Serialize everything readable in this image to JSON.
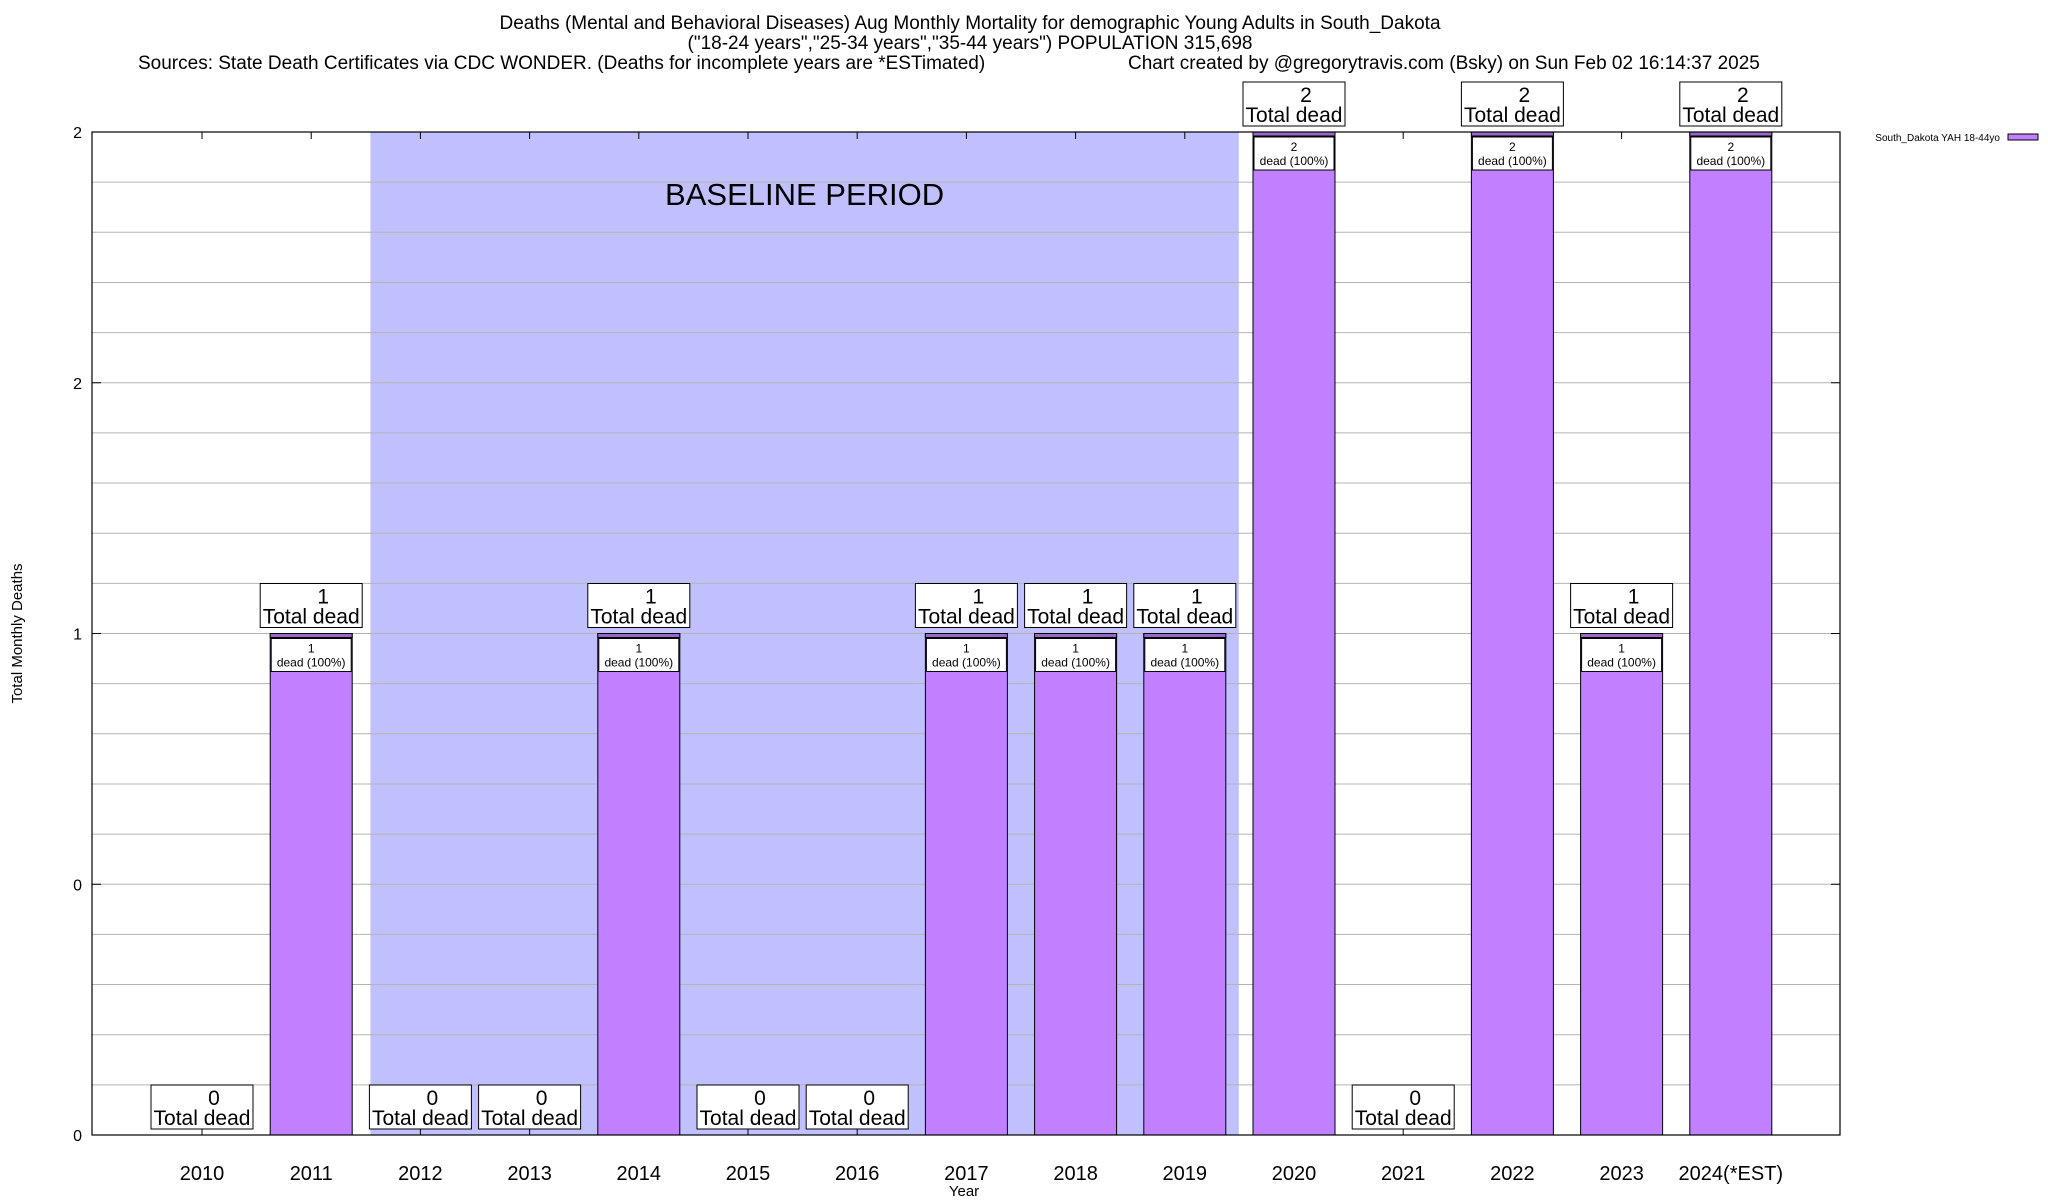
{
  "header": {
    "line1": "Deaths (Mental and Behavioral Diseases) Aug Monthly Mortality for demographic Young Adults in South_Dakota",
    "line2": "(\"18-24 years\",\"25-34 years\",\"35-44 years\") POPULATION 315,698",
    "line3": "Sources: State Death Certificates via CDC WONDER. (Deaths for incomplete years are *ESTimated)",
    "line4": "Chart created by @gregorytravis.com (Bsky) on Sun Feb 02 16:14:37 2025"
  },
  "chart_data": {
    "type": "bar",
    "xlabel": "Year",
    "ylabel": "Total Monthly Deaths",
    "categories": [
      "2010",
      "2011",
      "2012",
      "2013",
      "2014",
      "2015",
      "2016",
      "2017",
      "2018",
      "2019",
      "2020",
      "2021",
      "2022",
      "2023",
      "2024(*EST)"
    ],
    "series": [
      {
        "name": "South_Dakota YAH 18-44yo",
        "values": [
          0,
          1,
          0,
          0,
          1,
          0,
          0,
          1,
          1,
          1,
          2,
          0,
          2,
          1,
          2
        ]
      }
    ],
    "ylim": [
      0,
      2
    ],
    "ytick_labels": [
      "0",
      "0",
      "1",
      "2",
      "2"
    ],
    "grid": true,
    "legend_position": "top-right",
    "baseline_period": {
      "label": "BASELINE PERIOD",
      "start": "2012",
      "end": "2019"
    },
    "total_label_suffix": "Total dead",
    "segment_label_suffix": "dead (100%)",
    "colors": {
      "bar": "#c080ff",
      "baseline": "#c0c0ff",
      "bar_top": "#9966cc"
    }
  }
}
